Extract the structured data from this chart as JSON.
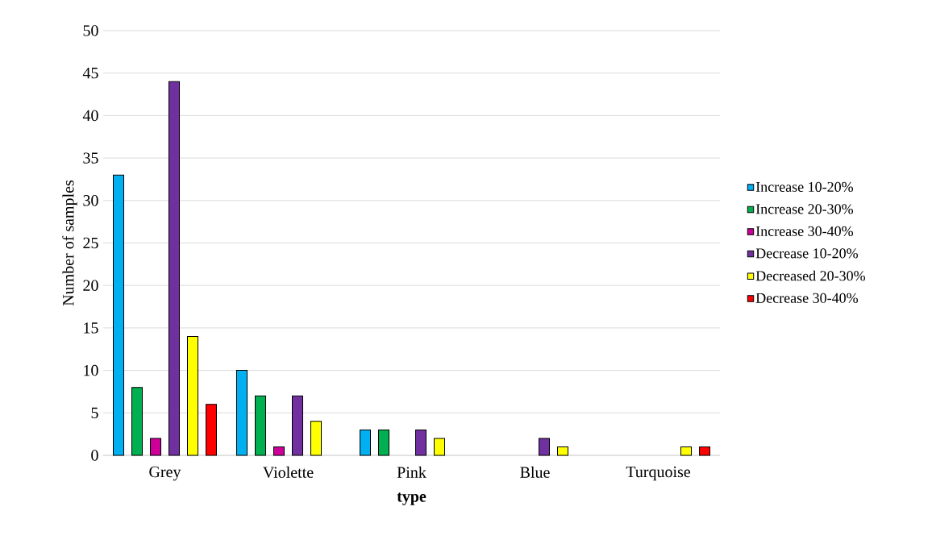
{
  "chart_data": {
    "type": "bar",
    "xlabel": "type",
    "ylabel": "Number of samples",
    "categories": [
      "Grey",
      "Violette",
      "Pink",
      "Blue",
      "Turquoise"
    ],
    "series": [
      {
        "name": "Increase 10-20%",
        "color": "#00b0f0",
        "values": [
          33,
          10,
          3,
          null,
          null
        ]
      },
      {
        "name": "Increase 20-30%",
        "color": "#00b050",
        "values": [
          8,
          7,
          3,
          null,
          null
        ]
      },
      {
        "name": "Increase 30-40%",
        "color": "#cc0099",
        "values": [
          2,
          1,
          null,
          null,
          null
        ]
      },
      {
        "name": "Decrease 10-20%",
        "color": "#7030a0",
        "values": [
          44,
          7,
          3,
          2,
          null
        ]
      },
      {
        "name": "Decreased 20-30%",
        "color": "#ffff00",
        "values": [
          14,
          4,
          2,
          1,
          1
        ]
      },
      {
        "name": "Decrease 30-40%",
        "color": "#ff0000",
        "values": [
          6,
          null,
          null,
          null,
          1
        ]
      }
    ],
    "ylim": [
      0,
      50
    ],
    "yticks": [
      0,
      5,
      10,
      15,
      20,
      25,
      30,
      35,
      40,
      45,
      50
    ],
    "grid": "y",
    "legend": "right"
  }
}
